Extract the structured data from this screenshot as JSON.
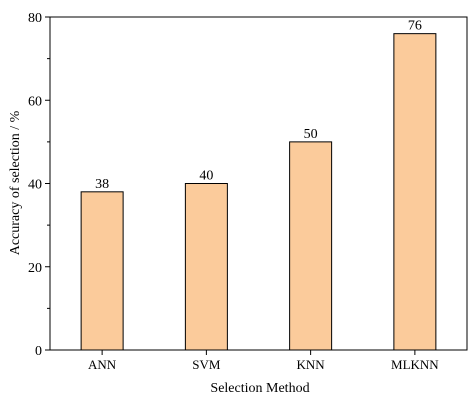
{
  "chart_data": {
    "type": "bar",
    "categories": [
      "ANN",
      "SVM",
      "KNN",
      "MLKNN"
    ],
    "values": [
      38,
      40,
      50,
      76
    ],
    "data_labels": [
      "38",
      "40",
      "50",
      "76"
    ],
    "title": "",
    "xlabel": "Selection Method",
    "ylabel": "Accuracy of selection / %",
    "ylim": [
      0,
      80
    ],
    "yticks": [
      0,
      20,
      40,
      60,
      80
    ],
    "bar_color": "#FBCB9B",
    "bar_edge_color": "#000000",
    "grid": false,
    "legend": "none"
  }
}
